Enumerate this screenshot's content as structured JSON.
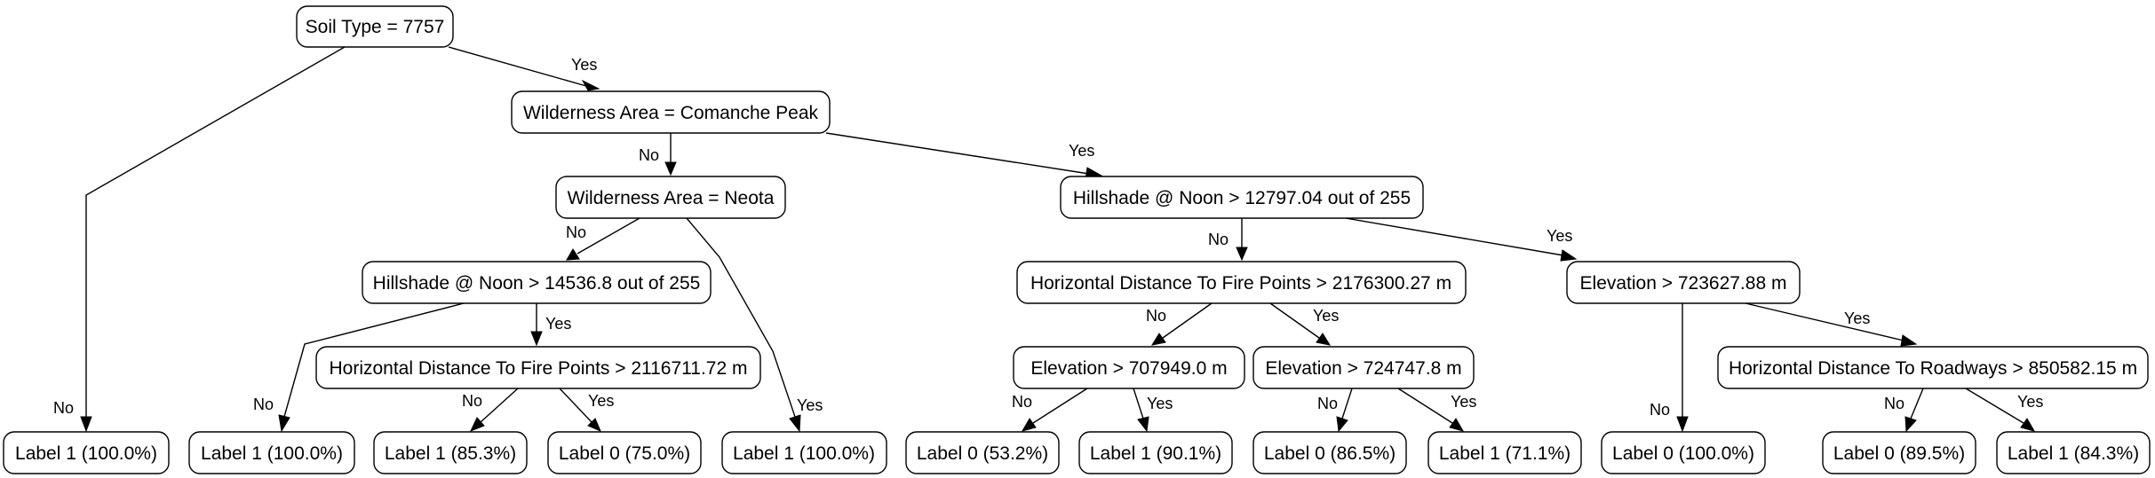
{
  "nodes": {
    "n1": "Soil Type = 7757",
    "n2": "Wilderness Area = Comanche Peak",
    "n3": "Wilderness Area = Neota",
    "n4": "Hillshade @ Noon > 12797.04 out of 255",
    "n5": "Hillshade @ Noon > 14536.8 out of 255",
    "n6": "Horizontal Distance To Fire Points > 2176300.27 m",
    "n7": "Elevation > 723627.88 m",
    "n8": "Horizontal Distance To Fire Points > 2116711.72 m",
    "n9": "Elevation > 707949.0 m",
    "n10": "Elevation > 724747.8 m",
    "n11": "Horizontal Distance To Roadways > 850582.15 m",
    "l1": "Label 1 (100.0%)",
    "l2": "Label 1 (100.0%)",
    "l3": "Label 1 (85.3%)",
    "l4": "Label 0 (75.0%)",
    "l5": "Label 1 (100.0%)",
    "l6": "Label 0 (53.2%)",
    "l7": "Label 1 (90.1%)",
    "l8": "Label 0 (86.5%)",
    "l9": "Label 1 (71.1%)",
    "l10": "Label 0 (100.0%)",
    "l11": "Label 0 (89.5%)",
    "l12": "Label 1 (84.3%)"
  },
  "edges": {
    "n1_no": "No",
    "n1_yes": "Yes",
    "n2_no": "No",
    "n2_yes": "Yes",
    "n3_no": "No",
    "n3_yes": "Yes",
    "n4_no": "No",
    "n4_yes": "Yes",
    "n5_no": "No",
    "n5_yes": "Yes",
    "n6_no": "No",
    "n6_yes": "Yes",
    "n7_no": "No",
    "n7_yes": "Yes",
    "n8_no": "No",
    "n8_yes": "Yes",
    "n9_no": "No",
    "n9_yes": "Yes",
    "n10_no": "No",
    "n10_yes": "Yes",
    "n11_no": "No",
    "n11_yes": "Yes"
  }
}
